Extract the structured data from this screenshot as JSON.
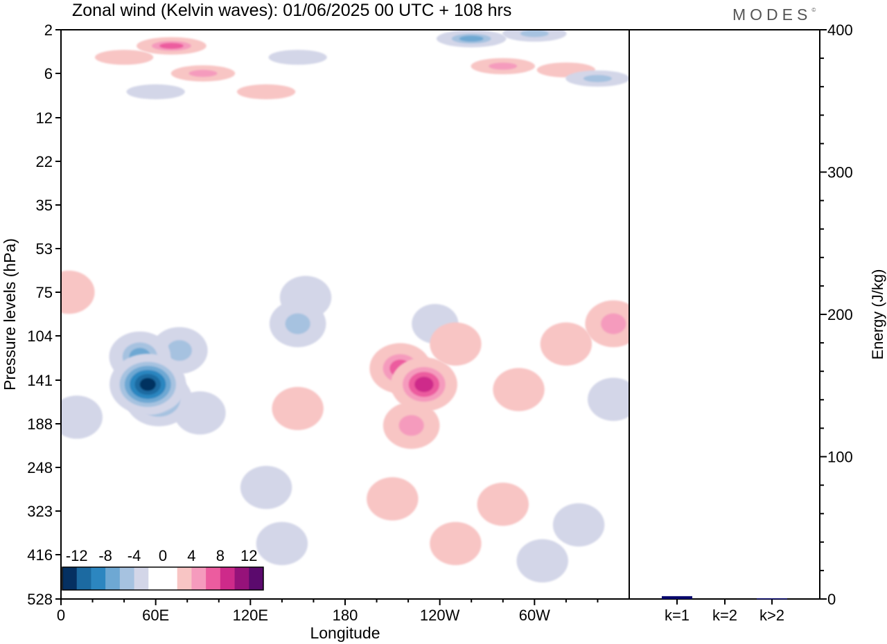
{
  "title": "Zonal wind (Kelvin waves):  01/06/2025  00 UTC  + 108 hrs",
  "logo": "MODES",
  "colors": {
    "neg": [
      "#053061",
      "#1c6aa1",
      "#2c86c0",
      "#6ea8d3",
      "#a6c2e0",
      "#d3d6e8"
    ],
    "zero": "#ffffff",
    "pos": [
      "#f8c5c4",
      "#f59bbd",
      "#ec5c9f",
      "#ce2a8a",
      "#96127a",
      "#5b0a6d"
    ],
    "energy_bar": "#0a0a6e",
    "axis": "#000000"
  },
  "chart_data": [
    {
      "type": "heatmap",
      "title": "Zonal wind (Kelvin waves):  01/06/2025  00 UTC  + 108 hrs",
      "xlabel": "Longitude",
      "ylabel": "Pressure levels (hPa)",
      "x_ticks": [
        "0",
        "60E",
        "120E",
        "180",
        "120W",
        "60W"
      ],
      "x_tick_degrees": [
        0,
        60,
        120,
        180,
        240,
        300
      ],
      "xlim": [
        0,
        360
      ],
      "y_ticks": [
        "2",
        "6",
        "12",
        "22",
        "35",
        "53",
        "75",
        "104",
        "141",
        "188",
        "248",
        "323",
        "416",
        "528"
      ],
      "y_scale": "log pressure, increasing downward",
      "colorbar_labels": [
        "-12",
        "-8",
        "-4",
        "0",
        "4",
        "8",
        "12"
      ],
      "colorbar_levels": [
        -14,
        -12,
        -10,
        -8,
        -6,
        -4,
        -2,
        2,
        4,
        6,
        8,
        10,
        12,
        14
      ],
      "features": [
        {
          "lon": 55,
          "level": 145,
          "value": -14
        },
        {
          "lon": 62,
          "level": 160,
          "value": -10
        },
        {
          "lon": 50,
          "level": 120,
          "value": -8
        },
        {
          "lon": 75,
          "level": 115,
          "value": -6
        },
        {
          "lon": 88,
          "level": 175,
          "value": -4
        },
        {
          "lon": 10,
          "level": 180,
          "value": -3
        },
        {
          "lon": 150,
          "level": 95,
          "value": -5
        },
        {
          "lon": 155,
          "level": 78,
          "value": -3
        },
        {
          "lon": 130,
          "level": 280,
          "value": -3
        },
        {
          "lon": 140,
          "level": 390,
          "value": -3
        },
        {
          "lon": 237,
          "level": 95,
          "value": -2
        },
        {
          "lon": 305,
          "level": 430,
          "value": -3
        },
        {
          "lon": 328,
          "level": 350,
          "value": -3
        },
        {
          "lon": 350,
          "level": 160,
          "value": -4
        },
        {
          "lon": 5,
          "level": 75,
          "value": 3
        },
        {
          "lon": 230,
          "level": 145,
          "value": 9
        },
        {
          "lon": 215,
          "level": 130,
          "value": 7
        },
        {
          "lon": 222,
          "level": 190,
          "value": 5
        },
        {
          "lon": 210,
          "level": 300,
          "value": 3
        },
        {
          "lon": 250,
          "level": 110,
          "value": 3
        },
        {
          "lon": 290,
          "level": 150,
          "value": 3
        },
        {
          "lon": 320,
          "level": 110,
          "value": 4
        },
        {
          "lon": 350,
          "level": 95,
          "value": 5
        },
        {
          "lon": 150,
          "level": 170,
          "value": 3
        },
        {
          "lon": 250,
          "level": 390,
          "value": 3
        },
        {
          "lon": 280,
          "level": 310,
          "value": 3
        },
        {
          "lon": 70,
          "level": 3,
          "value": 8
        },
        {
          "lon": 90,
          "level": 6,
          "value": 6
        },
        {
          "lon": 130,
          "level": 8,
          "value": 4
        },
        {
          "lon": 260,
          "level": 2.5,
          "value": -7
        },
        {
          "lon": 300,
          "level": 2.2,
          "value": -6
        },
        {
          "lon": 280,
          "level": 5,
          "value": 6
        },
        {
          "lon": 320,
          "level": 5.5,
          "value": 3
        },
        {
          "lon": 340,
          "level": 6.5,
          "value": -5
        },
        {
          "lon": 40,
          "level": 4,
          "value": 4
        },
        {
          "lon": 60,
          "level": 8,
          "value": -3
        },
        {
          "lon": 150,
          "level": 4,
          "value": -3
        }
      ]
    },
    {
      "type": "bar",
      "ylabel": "Energy (J/kg)",
      "categories": [
        "k=1",
        "k=2",
        "k>2"
      ],
      "values": [
        2,
        0,
        0.5
      ],
      "y_ticks": [
        "0",
        "100",
        "200",
        "300",
        "400"
      ],
      "ylim": [
        0,
        400
      ]
    }
  ]
}
